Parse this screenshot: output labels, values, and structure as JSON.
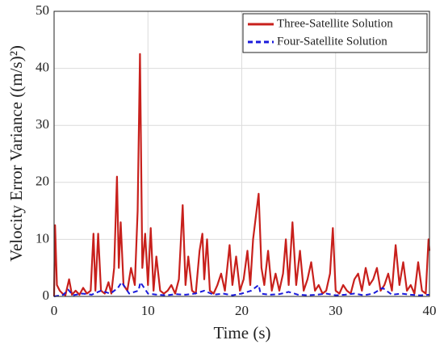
{
  "chart_data": {
    "type": "line",
    "xlabel": "Time (s)",
    "ylabel": "Velocity Error Variance ((m/s)²)",
    "xlim": [
      0,
      40
    ],
    "xticks": [
      0,
      10,
      20,
      30,
      40
    ],
    "ylim": [
      0,
      50
    ],
    "yticks": [
      0,
      10,
      20,
      30,
      40,
      50
    ],
    "grid": true,
    "legend": "upper right",
    "series": [
      {
        "name": "Three-Satellite Solution",
        "color": "#c8201c",
        "dash": false,
        "x": [
          0,
          0.1,
          0.3,
          0.6,
          0.9,
          1.2,
          1.6,
          1.9,
          2.3,
          2.7,
          3.1,
          3.5,
          3.9,
          4.2,
          4.4,
          4.7,
          5.0,
          5.4,
          5.8,
          6.1,
          6.4,
          6.7,
          6.9,
          7.1,
          7.4,
          7.8,
          8.2,
          8.6,
          8.9,
          9.15,
          9.4,
          9.7,
          10.0,
          10.3,
          10.6,
          10.9,
          11.3,
          11.7,
          12.1,
          12.5,
          12.9,
          13.3,
          13.7,
          14.0,
          14.3,
          14.7,
          15.1,
          15.5,
          15.8,
          16.0,
          16.3,
          16.6,
          17.0,
          17.4,
          17.8,
          18.2,
          18.7,
          19.0,
          19.4,
          19.8,
          20.2,
          20.6,
          20.9,
          21.2,
          21.5,
          21.8,
          22.1,
          22.4,
          22.8,
          23.2,
          23.6,
          24.0,
          24.4,
          24.7,
          25.0,
          25.4,
          25.8,
          26.2,
          26.6,
          27.0,
          27.4,
          27.8,
          28.2,
          28.6,
          29.0,
          29.4,
          29.7,
          30.0,
          30.4,
          30.8,
          31.2,
          31.6,
          32.0,
          32.4,
          32.8,
          33.2,
          33.6,
          34.0,
          34.4,
          34.8,
          35.2,
          35.6,
          36.0,
          36.4,
          36.8,
          37.2,
          37.6,
          38.0,
          38.4,
          38.8,
          39.2,
          39.6,
          39.9,
          40
        ],
        "values": [
          0,
          12.5,
          2,
          1,
          0.5,
          0.2,
          3,
          0.3,
          1,
          0.3,
          1.5,
          0.5,
          1,
          11,
          1,
          11,
          1,
          0.5,
          2.5,
          0.5,
          5,
          21,
          5,
          13,
          2,
          1,
          5,
          2,
          15,
          42.5,
          5,
          11,
          2,
          12,
          1,
          7,
          1,
          0.5,
          1,
          2,
          0.5,
          3,
          16,
          2,
          7,
          1,
          0.5,
          8,
          11,
          3,
          10,
          1,
          0.5,
          2,
          4,
          1,
          9,
          2,
          7,
          1,
          3,
          8,
          2,
          10,
          14,
          18,
          5,
          2,
          8,
          1,
          4,
          1,
          4,
          10,
          2,
          13,
          2,
          8,
          1,
          3,
          6,
          1,
          2,
          0.5,
          1,
          4,
          12,
          1,
          0.5,
          2,
          1,
          0.5,
          3,
          4,
          1,
          5,
          2,
          3,
          5,
          1,
          2,
          4,
          1,
          9,
          2,
          6,
          1,
          2,
          0.5,
          6,
          1,
          0.5,
          10,
          8
        ]
      },
      {
        "name": "Four-Satellite Solution",
        "color": "#1a1adb",
        "dash": true,
        "x": [
          0,
          1,
          1.5,
          2,
          3,
          4,
          5,
          6,
          6.8,
          7.2,
          8,
          9,
          9.2,
          10,
          11,
          12,
          13,
          14,
          15,
          16,
          17,
          18,
          19,
          20,
          21,
          21.8,
          22,
          23,
          24,
          25,
          26,
          27,
          28,
          29,
          30,
          31,
          32,
          33,
          34,
          35,
          36,
          37,
          38,
          39,
          40
        ],
        "values": [
          0,
          0.3,
          1.2,
          0.2,
          0.5,
          0.3,
          1,
          0.5,
          1.5,
          2.5,
          0.5,
          1,
          2.5,
          0.5,
          0.3,
          0.2,
          0.4,
          0.3,
          0.5,
          1,
          0.3,
          0.5,
          0.2,
          0.5,
          1,
          2,
          0.5,
          0.3,
          0.4,
          0.8,
          0.3,
          0.2,
          0.3,
          0.5,
          0.2,
          0.3,
          0.5,
          0.2,
          0.5,
          1.5,
          0.3,
          0.5,
          0.3,
          0.2,
          0.3
        ]
      }
    ]
  }
}
